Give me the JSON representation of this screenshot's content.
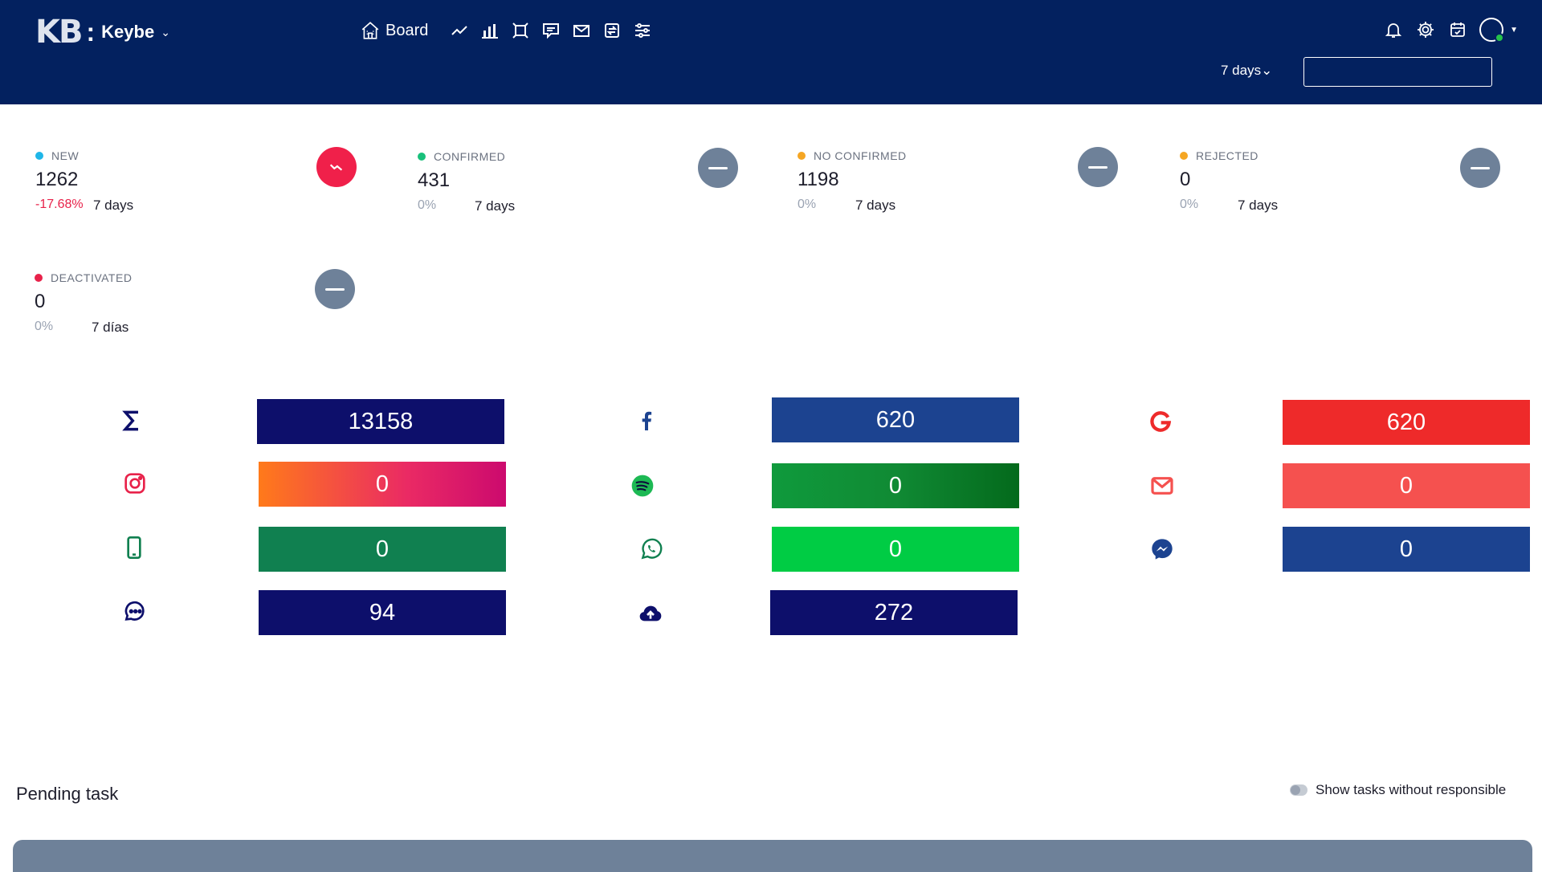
{
  "header": {
    "logo_mark": "KB",
    "app_name": "Keybe",
    "nav_board_label": "Board",
    "nav_icons": [
      "trend-icon",
      "bar-chart-icon",
      "frame-icon",
      "chat-box-icon",
      "envelope-icon",
      "transfer-icon",
      "sliders-icon"
    ],
    "right_icons": [
      "bell-icon",
      "gear-icon",
      "calendar-icon",
      "avatar-icon"
    ],
    "period_label": "7 days",
    "period_input_value": ""
  },
  "stats": [
    {
      "label": "NEW",
      "value": "1262",
      "pct": "-17.68%",
      "days": "7 days",
      "bullet_color": "#1fb6e8",
      "button": "trend-down",
      "button_color": "#f0204a"
    },
    {
      "label": "CONFIRMED",
      "value": "431",
      "pct": "0%",
      "days": "7 days",
      "bullet_color": "#19c07b",
      "button": "minus",
      "button_color": "#6e8199"
    },
    {
      "label": "NO CONFIRMED",
      "value": "1198",
      "pct": "0%",
      "days": "7 days",
      "bullet_color": "#f5a623",
      "button": "minus",
      "button_color": "#6e8199"
    },
    {
      "label": "REJECTED",
      "value": "0",
      "pct": "0%",
      "days": "7 days",
      "bullet_color": "#f5a623",
      "button": "minus",
      "button_color": "#6e8199"
    },
    {
      "label": "DEACTIVATED",
      "value": "0",
      "pct": "0%",
      "days": "7 días",
      "bullet_color": "#e8224a",
      "button": "minus",
      "button_color": "#6e8199"
    }
  ],
  "sources": [
    {
      "icon": "sigma-icon",
      "value": "13158",
      "color": "#0d0f6b"
    },
    {
      "icon": "facebook-icon",
      "value": "620",
      "color": "#1c4390"
    },
    {
      "icon": "google-icon",
      "value": "620",
      "color": "#ee2a2a"
    },
    {
      "icon": "instagram-icon",
      "value": "0",
      "color": "gradient-orange-pink"
    },
    {
      "icon": "spotify-icon",
      "value": "0",
      "color": "gradient-green"
    },
    {
      "icon": "mail-icon",
      "value": "0",
      "color": "#f5514f"
    },
    {
      "icon": "phone-icon",
      "value": "0",
      "color": "#108050"
    },
    {
      "icon": "whatsapp-icon",
      "value": "0",
      "color": "#00cc44"
    },
    {
      "icon": "messenger-icon",
      "value": "0",
      "color": "#1c4390"
    },
    {
      "icon": "chat-bubble-icon",
      "value": "94",
      "color": "#0d0f6b"
    },
    {
      "icon": "cloud-upload-icon",
      "value": "272",
      "color": "#0d0f6b"
    }
  ],
  "pending": {
    "title": "Pending task",
    "toggle_label": "Show tasks without responsible"
  }
}
